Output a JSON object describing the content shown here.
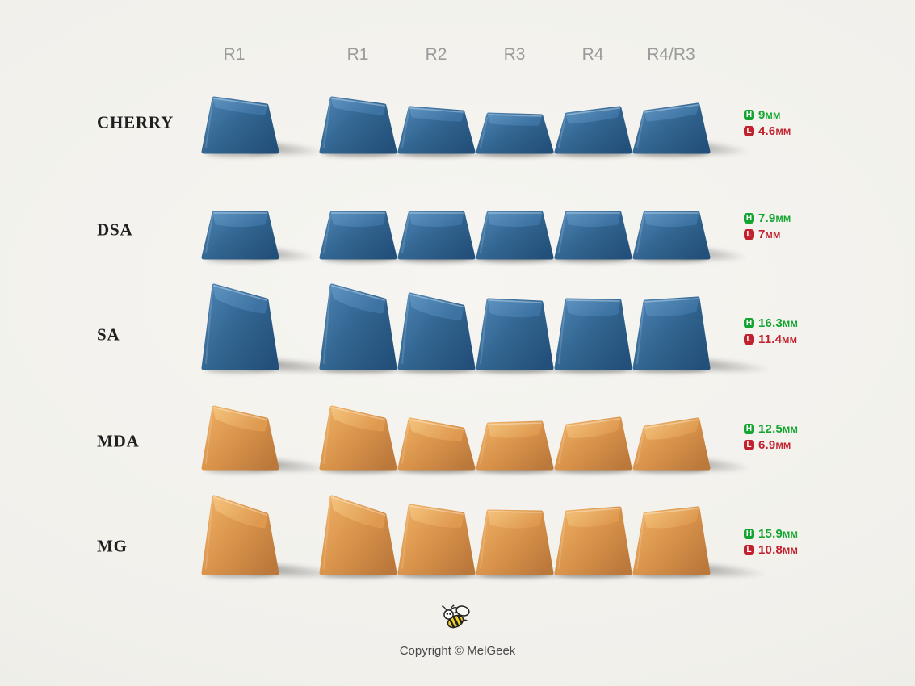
{
  "header": {
    "column_labels": [
      "R1",
      "R1",
      "R2",
      "R3",
      "R4",
      "R4/R3"
    ]
  },
  "profiles": [
    {
      "name": "CHERRY",
      "color_scheme": "blue",
      "height_mm": "9",
      "length_mm": "4.6",
      "caps": [
        [
          66,
          57
        ],
        [
          66,
          57
        ],
        [
          54,
          49
        ],
        [
          46,
          44
        ],
        [
          46,
          54
        ],
        [
          49,
          58
        ]
      ],
      "dish": 2,
      "band": 10
    },
    {
      "name": "DSA",
      "color_scheme": "blue",
      "height_mm": "7.9",
      "length_mm": "7",
      "caps": [
        [
          55,
          55
        ],
        [
          55,
          55
        ],
        [
          55,
          55
        ],
        [
          55,
          55
        ],
        [
          55,
          55
        ],
        [
          55,
          55
        ]
      ],
      "dish": 5,
      "band": 13
    },
    {
      "name": "SA",
      "color_scheme": "blue",
      "height_mm": "16.3",
      "length_mm": "11.4",
      "caps": [
        [
          102,
          84
        ],
        [
          102,
          84
        ],
        [
          91,
          76
        ],
        [
          84,
          81
        ],
        [
          84,
          83
        ],
        [
          82,
          86
        ]
      ],
      "dish": 6,
      "band": 15
    },
    {
      "name": "MDA",
      "color_scheme": "orange",
      "height_mm": "12.5",
      "length_mm": "6.9",
      "caps": [
        [
          75,
          60
        ],
        [
          75,
          60
        ],
        [
          60,
          48
        ],
        [
          54,
          56
        ],
        [
          52,
          61
        ],
        [
          50,
          60
        ]
      ],
      "dish": 6,
      "band": 13
    },
    {
      "name": "MG",
      "color_scheme": "orange",
      "height_mm": "15.9",
      "length_mm": "10.8",
      "caps": [
        [
          94,
          72
        ],
        [
          94,
          72
        ],
        [
          83,
          73
        ],
        [
          76,
          75
        ],
        [
          75,
          80
        ],
        [
          73,
          80
        ]
      ],
      "dish": 7,
      "band": 15
    }
  ],
  "legend": {
    "height_badge": "H",
    "length_badge": "L"
  },
  "units": {
    "mm": "mm"
  },
  "footer": {
    "copyright": "Copyright © MelGeek",
    "logo_icon": "bee-icon"
  },
  "colors": {
    "background": "#f1f0eb",
    "column_label": "#9b9b9b",
    "profile_label": "#1f1f1f",
    "height_green": "#13a52f",
    "length_red": "#c1202d",
    "copyright_gray": "#4a4a4a",
    "blue_keycap": {
      "body": [
        "#4a80b0",
        "#31648f",
        "#23507a"
      ],
      "top": [
        "#5d92bf",
        "#3d73a2"
      ]
    },
    "orange_keycap": {
      "body": [
        "#edad62",
        "#d8924a",
        "#bb783b"
      ],
      "top": [
        "#f4c27b",
        "#df9a50"
      ]
    }
  }
}
